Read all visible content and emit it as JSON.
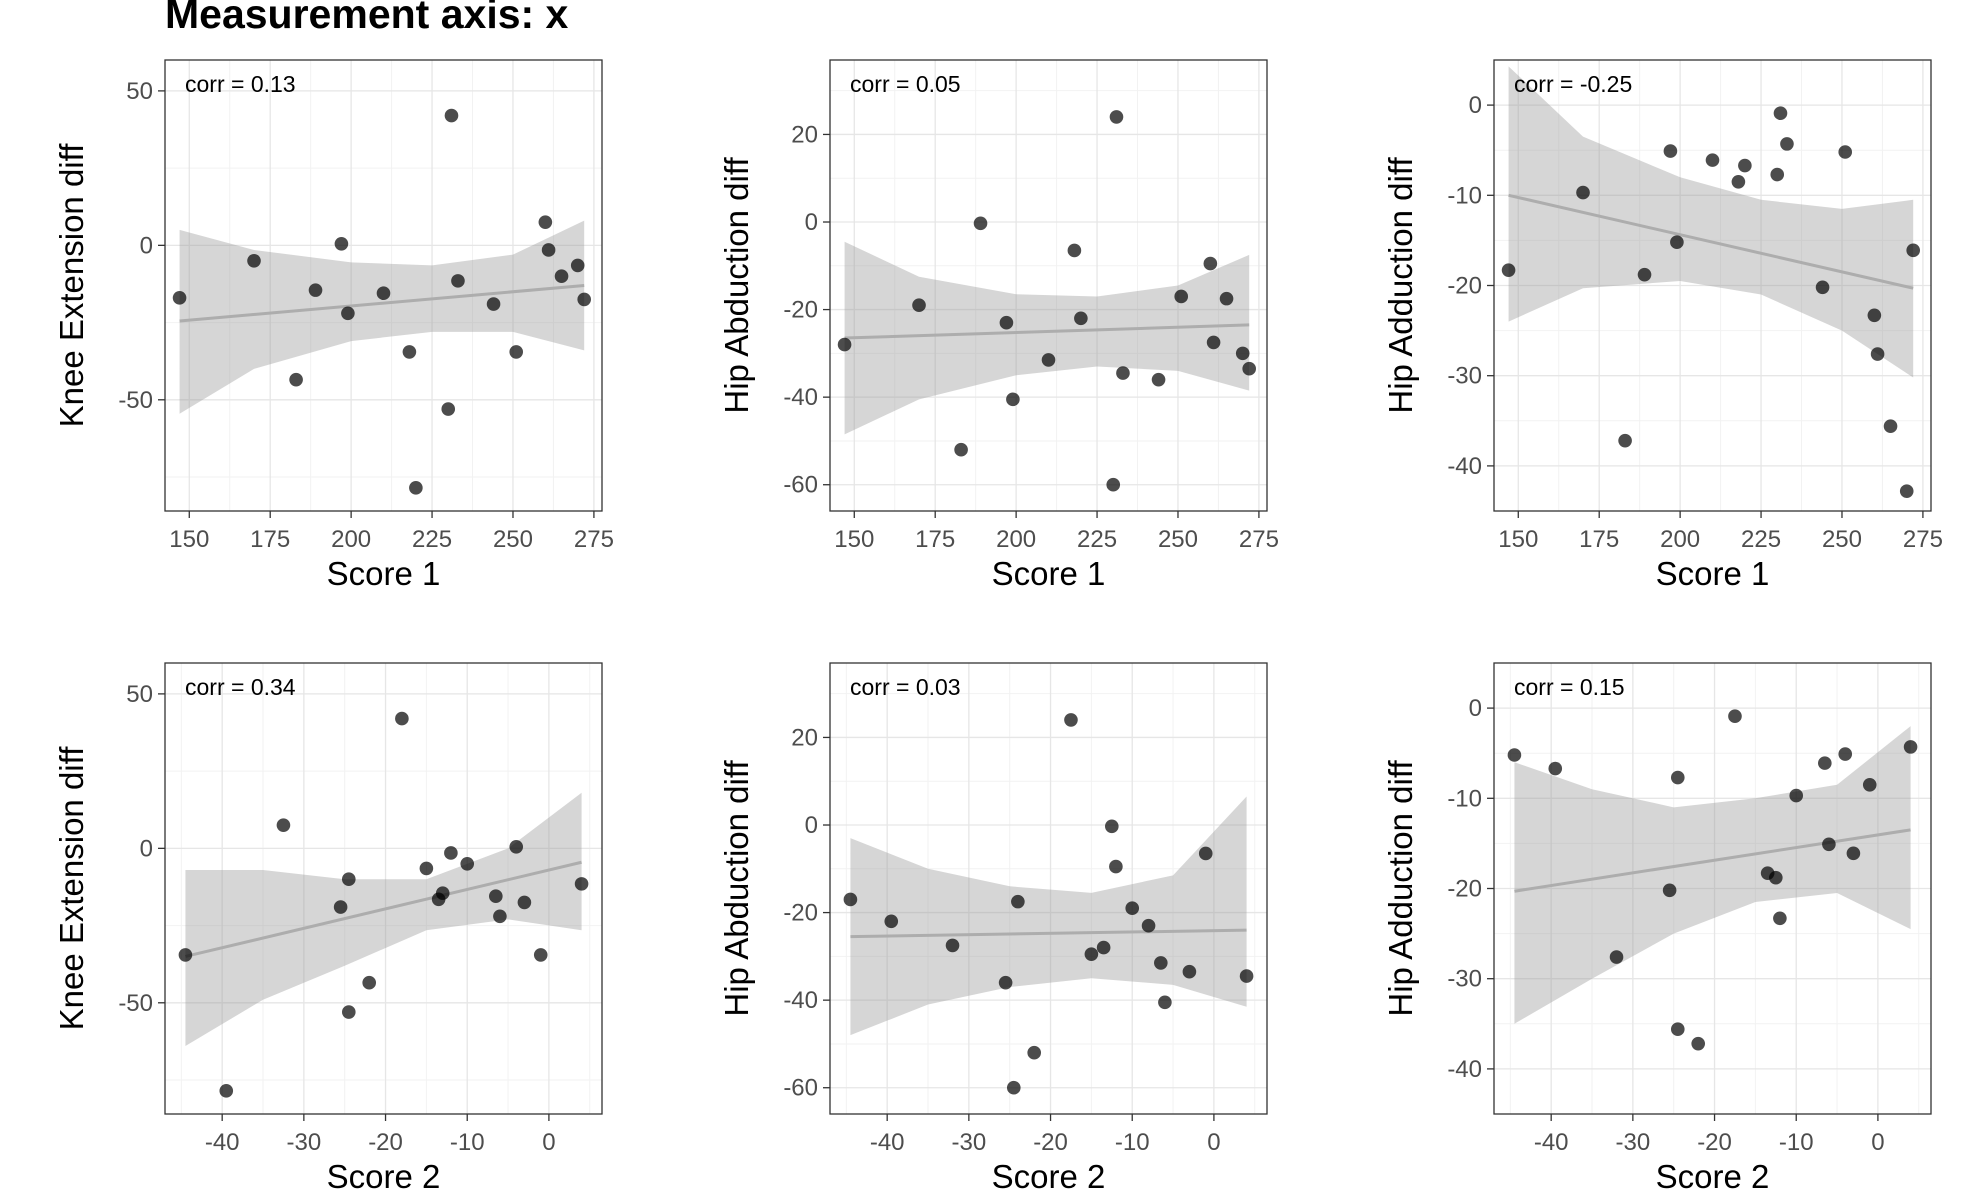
{
  "figure": {
    "title": "Measurement axis: x"
  },
  "chart_data": [
    {
      "type": "scatter",
      "panel": "row1-col1",
      "xlabel": "Score 1",
      "ylabel": "Knee Extension diff",
      "annotation": "corr = 0.13",
      "xlim": [
        142.5,
        277.5
      ],
      "ylim": [
        -86,
        60
      ],
      "xticks": [
        150,
        175,
        200,
        225,
        250,
        275
      ],
      "yticks": [
        -50,
        0,
        50
      ],
      "x": [
        147,
        170,
        183,
        189,
        197,
        199,
        210,
        218,
        220,
        230,
        231,
        233,
        244,
        251,
        260,
        261,
        265,
        270,
        272
      ],
      "y": [
        -17,
        -5,
        -43.5,
        -14.5,
        0.5,
        -22,
        -15.5,
        -34.5,
        -78.5,
        -53,
        42,
        -11.5,
        -19,
        -34.5,
        7.5,
        -1.5,
        -10,
        -6.5,
        -17.5
      ],
      "trend": {
        "x": [
          147,
          272
        ],
        "y": [
          -24.5,
          -13
        ]
      },
      "ribbon": {
        "x": [
          147,
          170,
          200,
          225,
          250,
          272
        ],
        "upper": [
          5,
          -1.5,
          -5.5,
          -6.5,
          -3,
          8
        ],
        "lower": [
          -54.5,
          -40,
          -31,
          -28,
          -28,
          -34
        ]
      }
    },
    {
      "type": "scatter",
      "panel": "row1-col2",
      "xlabel": "Score 1",
      "ylabel": "Hip Abduction diff",
      "annotation": "corr = 0.05",
      "xlim": [
        142.5,
        277.5
      ],
      "ylim": [
        -66,
        37
      ],
      "xticks": [
        150,
        175,
        200,
        225,
        250,
        275
      ],
      "yticks": [
        -60,
        -40,
        -20,
        0,
        20
      ],
      "x": [
        147,
        170,
        183,
        189,
        197,
        199,
        210,
        218,
        220,
        230,
        231,
        233,
        244,
        251,
        260,
        261,
        265,
        270,
        272
      ],
      "y": [
        -28,
        -19,
        -52,
        -0.3,
        -23,
        -40.5,
        -31.5,
        -6.5,
        -22,
        -60,
        24,
        -34.5,
        -36,
        -17,
        -9.5,
        -27.5,
        -17.5,
        -30,
        -33.5
      ],
      "trend": {
        "x": [
          147,
          272
        ],
        "y": [
          -26.5,
          -23.5
        ]
      },
      "ribbon": {
        "x": [
          147,
          170,
          200,
          225,
          250,
          272
        ],
        "upper": [
          -4.5,
          -12.5,
          -16.5,
          -17,
          -14.5,
          -7.5
        ],
        "lower": [
          -48.5,
          -40.5,
          -35,
          -33,
          -34,
          -38.5
        ]
      }
    },
    {
      "type": "scatter",
      "panel": "row1-col3",
      "xlabel": "Score 1",
      "ylabel": "Hip Adduction diff",
      "annotation": "corr = -0.25",
      "xlim": [
        142.5,
        277.5
      ],
      "ylim": [
        -45,
        5
      ],
      "xticks": [
        150,
        175,
        200,
        225,
        250,
        275
      ],
      "yticks": [
        -40,
        -30,
        -20,
        -10,
        0
      ],
      "x": [
        147,
        170,
        183,
        189,
        197,
        199,
        210,
        218,
        220,
        230,
        231,
        233,
        244,
        251,
        260,
        261,
        265,
        270,
        272
      ],
      "y": [
        -18.3,
        -9.7,
        -37.2,
        -18.8,
        -5.1,
        -15.2,
        -6.1,
        -8.5,
        -6.7,
        -7.7,
        -0.9,
        -4.3,
        -20.2,
        -5.2,
        -23.3,
        -27.6,
        -35.6,
        -42.8,
        -16.1
      ],
      "trend": {
        "x": [
          147,
          272
        ],
        "y": [
          -10,
          -20.3
        ]
      },
      "ribbon": {
        "x": [
          147,
          170,
          200,
          225,
          250,
          272
        ],
        "upper": [
          4.3,
          -3.5,
          -8,
          -10.5,
          -11.5,
          -10.5
        ],
        "lower": [
          -24,
          -20.3,
          -19.5,
          -21,
          -25,
          -30.2
        ]
      }
    },
    {
      "type": "scatter",
      "panel": "row2-col1",
      "xlabel": "Score 2",
      "ylabel": "Knee Extension diff",
      "annotation": "corr = 0.34",
      "xlim": [
        -47,
        6.5
      ],
      "ylim": [
        -86,
        60
      ],
      "xticks": [
        -40,
        -30,
        -20,
        -10,
        0
      ],
      "yticks": [
        -50,
        0,
        50
      ],
      "x": [
        -44.5,
        -39.5,
        -32.5,
        -25.5,
        -24.5,
        -24.5,
        -22,
        -18,
        -15,
        -13.5,
        -13,
        -12,
        -10,
        -6.5,
        -6,
        -4,
        -3,
        -1,
        4
      ],
      "y": [
        -34.5,
        -78.5,
        7.5,
        -19,
        -10,
        -53,
        -43.5,
        42,
        -6.5,
        -16.5,
        -14.5,
        -1.5,
        -5,
        -15.5,
        -22,
        0.5,
        -17.5,
        -34.5,
        -11.5
      ],
      "trend": {
        "x": [
          -44.5,
          4
        ],
        "y": [
          -35,
          -4.5
        ]
      },
      "ribbon": {
        "x": [
          -44.5,
          -35,
          -25,
          -15,
          -5,
          4
        ],
        "upper": [
          -7,
          -7,
          -10,
          -10,
          0,
          18
        ],
        "lower": [
          -64,
          -49,
          -38,
          -26.5,
          -23,
          -26.5
        ]
      }
    },
    {
      "type": "scatter",
      "panel": "row2-col2",
      "xlabel": "Score 2",
      "ylabel": "Hip Abduction diff",
      "annotation": "corr = 0.03",
      "xlim": [
        -47,
        6.5
      ],
      "ylim": [
        -66,
        37
      ],
      "xticks": [
        -40,
        -30,
        -20,
        -10,
        0
      ],
      "yticks": [
        -60,
        -40,
        -20,
        0,
        20
      ],
      "x": [
        -44.5,
        -39.5,
        -32,
        -25.5,
        -24.5,
        -24,
        -22,
        -17.5,
        -15,
        -13.5,
        -12.5,
        -12,
        -10,
        -8,
        -6.5,
        -6,
        -3,
        -1,
        4
      ],
      "y": [
        -17,
        -22,
        -27.5,
        -36,
        -60,
        -17.5,
        -52,
        24,
        -29.5,
        -28,
        -0.3,
        -9.5,
        -19,
        -23,
        -31.5,
        -40.5,
        -33.5,
        -6.5,
        -34.5
      ],
      "trend": {
        "x": [
          -44.5,
          4
        ],
        "y": [
          -25.5,
          -24
        ]
      },
      "ribbon": {
        "x": [
          -44.5,
          -35,
          -25,
          -15,
          -5,
          4
        ],
        "upper": [
          -3,
          -10,
          -14,
          -15.5,
          -11.5,
          6.5
        ],
        "lower": [
          -48,
          -41,
          -37,
          -35,
          -36.5,
          -41.5
        ]
      }
    },
    {
      "type": "scatter",
      "panel": "row2-col3",
      "xlabel": "Score 2",
      "ylabel": "Hip Adduction diff",
      "annotation": "corr = 0.15",
      "xlim": [
        -47,
        6.5
      ],
      "ylim": [
        -45,
        5
      ],
      "xticks": [
        -40,
        -30,
        -20,
        -10,
        0
      ],
      "yticks": [
        -40,
        -30,
        -20,
        -10,
        0
      ],
      "x": [
        -44.5,
        -39.5,
        -32,
        -25.5,
        -24.5,
        -24.5,
        -22,
        -17.5,
        -13.5,
        -12.5,
        -12,
        -10,
        -6.5,
        -6,
        -4,
        -3,
        -1,
        4
      ],
      "y": [
        -5.2,
        -6.7,
        -27.6,
        -20.2,
        -7.7,
        -35.6,
        -37.2,
        -0.9,
        -18.3,
        -18.8,
        -23.3,
        -9.7,
        -6.1,
        -15.1,
        -5.1,
        -16.1,
        -8.5,
        -4.3
      ],
      "trend": {
        "x": [
          -44.5,
          4
        ],
        "y": [
          -20.3,
          -13.5
        ]
      },
      "ribbon": {
        "x": [
          -44.5,
          -35,
          -25,
          -15,
          -5,
          4
        ],
        "upper": [
          -6,
          -9,
          -11,
          -10,
          -8.5,
          -2
        ],
        "lower": [
          -35,
          -30,
          -25,
          -21.5,
          -20.5,
          -24.5
        ]
      }
    }
  ]
}
